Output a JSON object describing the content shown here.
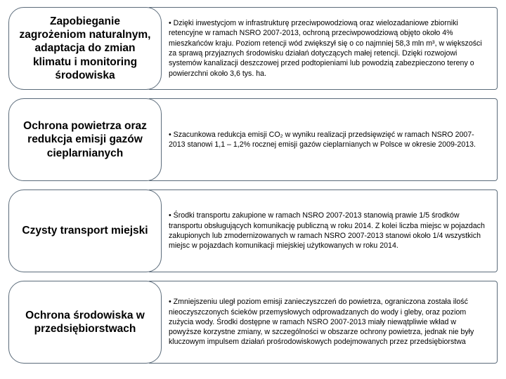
{
  "rows": [
    {
      "title": "Zapobieganie zagrożeniom naturalnym, adaptacja do zmian klimatu i monitoring środowiska",
      "bullet": "• Dzięki inwestycjom w infrastrukturę przeciwpowodziową oraz wielozadaniowe zbiorniki retencyjne w ramach NSRO 2007-2013, ochroną przeciwpowodziową objęto około 4% mieszkańców kraju. Poziom retencji wód zwiększył się o co najmniej 58,3 mln m³, w większości za sprawą przyjaznych środowisku działań dotyczących małej retencji. Dzięki rozwojowi systemów kanalizacji deszczowej przed podtopieniami lub powodzią zabezpieczono tereny o powierzchni około 3,6 tys. ha."
    },
    {
      "title": "Ochrona powietrza oraz redukcja emisji gazów cieplarnianych",
      "bullet": "• Szacunkowa redukcja emisji CO₂ w wyniku realizacji przedsięwzięć w ramach NSRO 2007-2013 stanowi 1,1 – 1,2% rocznej emisji gazów cieplarnianych w Polsce w okresie 2009-2013."
    },
    {
      "title": "Czysty transport miejski",
      "bullet": "• Środki transportu zakupione w ramach NSRO 2007-2013 stanowią prawie 1/5 środków transportu obsługujących komunikację publiczną w roku 2014. Z kolei liczba miejsc w pojazdach zakupionych lub zmodernizowanych w ramach NSRO 2007-2013 stanowi około 1/4 wszystkich miejsc w pojazdach komunikacji miejskiej użytkowanych w roku 2014."
    },
    {
      "title": "Ochrona środowiska w przedsiębiorstwach",
      "bullet": "• Zmniejszeniu uległ poziom emisji zanieczyszczeń do powietrza, ograniczona została ilość nieoczyszczonych ścieków przemysłowych odprowadzanych do wody i gleby, oraz poziom zużycia wody. Środki dostępne w ramach NSRO 2007-2013 miały niewątpliwie wkład w powyższe korzystne zmiany, w szczególności w obszarze ochrony powietrza, jednak nie były kluczowym impulsem działań prośrodowiskowych podejmowanych przez przedsiębiorstwa"
    }
  ]
}
